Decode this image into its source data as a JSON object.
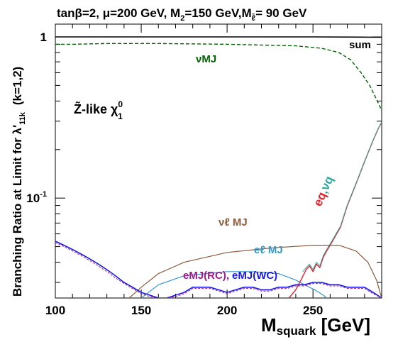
{
  "chart_data": {
    "type": "line",
    "title": "tanβ=2, μ=200 GeV, M₂=150 GeV,M_ℓ̃= 90 GeV",
    "title_parts": {
      "p1": "tanβ=2, μ=200 GeV, M",
      "sub2": "2",
      "p2": "=150 GeV,M",
      "subl": "ℓ̃",
      "p3": "= 90 GeV"
    },
    "xlabel_main": "M",
    "xlabel_sub": "squark",
    "xlabel_unit": " [GeV]",
    "ylabel": "Branching Ratio at Limit for  λ′",
    "ylabel_sub": "11k",
    "ylabel_tail": "(k=1,2)",
    "xlim": [
      100,
      290
    ],
    "ylim": [
      0.024,
      1.2
    ],
    "yscale": "log",
    "x_ticks": [
      {
        "v": 100,
        "label": "100"
      },
      {
        "v": 150,
        "label": "150"
      },
      {
        "v": 200,
        "label": "200"
      },
      {
        "v": 250,
        "label": "250"
      }
    ],
    "y_major_ticks": [
      {
        "v": 0.1,
        "base": "10",
        "exp": "-1"
      },
      {
        "v": 1,
        "base": "1",
        "exp": ""
      }
    ],
    "annotation": {
      "main": "Z̃-like  χ",
      "sup": "0",
      "sub": "1"
    },
    "series": [
      {
        "name": "sum",
        "color": "#000000",
        "dash": "",
        "width": 1.6,
        "x": [
          100,
          150,
          200,
          250,
          290
        ],
        "y": [
          1.0,
          1.0,
          1.0,
          1.0,
          0.995
        ]
      },
      {
        "name": "νMJ",
        "color": "#006400",
        "dash": "5,3",
        "width": 1.4,
        "x": [
          100,
          110,
          130,
          160,
          200,
          240,
          255,
          265,
          272,
          278,
          283,
          287,
          290
        ],
        "y": [
          0.9,
          0.9,
          0.91,
          0.91,
          0.9,
          0.88,
          0.85,
          0.8,
          0.72,
          0.6,
          0.5,
          0.41,
          0.35
        ]
      },
      {
        "name": "νℓ MJ",
        "color": "#8b5a3c",
        "dash": "",
        "width": 1.2,
        "x": [
          143,
          150,
          160,
          175,
          200,
          225,
          250,
          265,
          275,
          282,
          287,
          290
        ],
        "y": [
          0.024,
          0.028,
          0.034,
          0.04,
          0.046,
          0.049,
          0.051,
          0.051,
          0.047,
          0.04,
          0.031,
          0.024
        ]
      },
      {
        "name": "eℓ MJ",
        "color": "#3399cc",
        "dash": "",
        "width": 1.2,
        "x": [
          150,
          160,
          175,
          200,
          215,
          230,
          240,
          245,
          251,
          256,
          258
        ],
        "y": [
          0.024,
          0.029,
          0.033,
          0.035,
          0.035,
          0.034,
          0.031,
          0.029,
          0.027,
          0.025,
          0.024
        ]
      },
      {
        "name": "eq , νq (red)",
        "color": "#e8202a",
        "dash": "",
        "width": 1.4,
        "x": [
          236,
          240,
          243,
          246,
          248,
          250,
          252,
          254,
          256,
          258,
          260,
          263,
          266,
          268,
          270,
          273,
          276,
          279,
          282,
          285,
          288,
          290
        ],
        "y": [
          0.024,
          0.027,
          0.031,
          0.036,
          0.038,
          0.035,
          0.039,
          0.037,
          0.043,
          0.047,
          0.051,
          0.058,
          0.066,
          0.077,
          0.09,
          0.108,
          0.13,
          0.158,
          0.19,
          0.228,
          0.27,
          0.295
        ]
      },
      {
        "name": "eq , νq (teal)",
        "color": "#2aa8a0",
        "dash": "",
        "width": 1.0,
        "x": [
          244,
          246,
          248,
          250,
          252,
          254,
          256,
          258,
          260,
          263,
          266,
          268,
          270,
          273,
          276,
          279,
          282,
          285,
          288,
          290
        ],
        "y": [
          0.035,
          0.037,
          0.039,
          0.036,
          0.04,
          0.038,
          0.044,
          0.048,
          0.052,
          0.059,
          0.067,
          0.078,
          0.091,
          0.109,
          0.131,
          0.159,
          0.191,
          0.229,
          0.271,
          0.296
        ]
      },
      {
        "name": "eMJ(WC)",
        "color": "#1a1ae6",
        "dash": "",
        "width": 1.6,
        "x": [
          100,
          105,
          110,
          115,
          120,
          125,
          130,
          135,
          140,
          145,
          150,
          155,
          160,
          165,
          170,
          175,
          180,
          185,
          190,
          195,
          200,
          205,
          210,
          215,
          220,
          225,
          230,
          235,
          240,
          245,
          250,
          255,
          260,
          265,
          270,
          275,
          280,
          285,
          290
        ],
        "y": [
          0.054,
          0.051,
          0.048,
          0.045,
          0.042,
          0.039,
          0.036,
          0.033,
          0.03,
          0.028,
          0.026,
          0.025,
          0.024,
          0.024,
          0.025,
          0.026,
          0.028,
          0.028,
          0.028,
          0.027,
          0.026,
          0.027,
          0.028,
          0.028,
          0.027,
          0.027,
          0.028,
          0.028,
          0.029,
          0.029,
          0.03,
          0.03,
          0.029,
          0.029,
          0.028,
          0.028,
          0.028,
          0.026,
          0.024
        ]
      },
      {
        "name": "eMJ(RC)",
        "color": "#a01a8c",
        "dash": "3,2",
        "width": 1.0,
        "x": [
          100,
          105,
          110,
          115,
          120,
          125,
          130,
          135,
          140,
          145,
          150,
          155,
          160,
          165,
          170,
          175,
          180,
          185,
          190,
          195,
          200,
          205,
          210,
          215,
          220,
          225,
          230,
          235,
          240,
          245,
          250,
          255,
          260,
          265,
          270,
          275,
          280,
          285,
          290
        ],
        "y": [
          0.053,
          0.05,
          0.047,
          0.044,
          0.041,
          0.038,
          0.035,
          0.032,
          0.0295,
          0.0275,
          0.0255,
          0.0245,
          0.024,
          0.024,
          0.0245,
          0.0255,
          0.0275,
          0.0275,
          0.0275,
          0.0265,
          0.0255,
          0.0265,
          0.0275,
          0.0275,
          0.0265,
          0.0265,
          0.0275,
          0.0275,
          0.0285,
          0.0285,
          0.0295,
          0.0295,
          0.0285,
          0.0285,
          0.0275,
          0.0275,
          0.0275,
          0.0255,
          0.024
        ]
      }
    ],
    "labels": {
      "sum": {
        "text": "sum",
        "color": "#000000"
      },
      "nu_mj": {
        "text": "νMJ",
        "color": "#006400"
      },
      "nul_mj": {
        "text": "νℓ MJ",
        "color": "#8b5a3c"
      },
      "el_mj": {
        "text": "eℓ MJ",
        "color": "#3399cc"
      },
      "emj_rc": {
        "text": "eMJ(RC),",
        "color": "#a01a8c"
      },
      "emj_wc": {
        "text": "eMJ(WC)",
        "color": "#1a1ae6"
      },
      "eq": {
        "text": "eq",
        "color": "#e8202a"
      },
      "comma": {
        "text": ",",
        "color": "#2aa8a0"
      },
      "nuq": {
        "text": "νq",
        "color": "#2aa8a0"
      }
    }
  }
}
